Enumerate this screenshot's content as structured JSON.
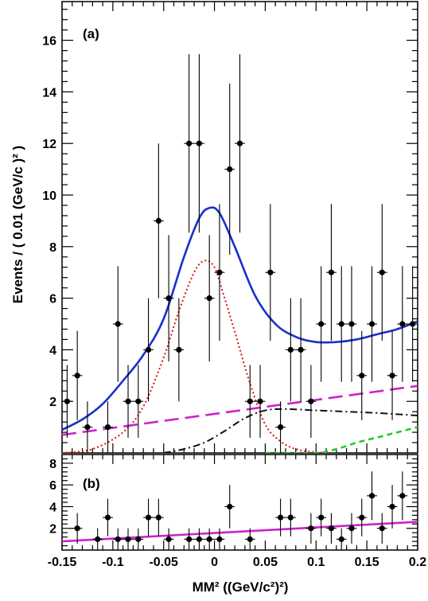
{
  "chart_data": [
    {
      "type": "scatter",
      "panel_label": "(a)",
      "xlabel": "MM² ((GeV/c²)²)",
      "ylabel": "Events / ( 0.01 (GeV/c )² )",
      "xlim": [
        -0.15,
        0.2
      ],
      "ylim": [
        0,
        17.5
      ],
      "yticks": [
        2,
        4,
        6,
        8,
        10,
        12,
        14,
        16
      ],
      "points": {
        "x": [
          -0.145,
          -0.135,
          -0.125,
          -0.105,
          -0.095,
          -0.085,
          -0.075,
          -0.065,
          -0.055,
          -0.045,
          -0.035,
          -0.025,
          -0.015,
          -0.005,
          0.005,
          0.015,
          0.025,
          0.035,
          0.045,
          0.055,
          0.065,
          0.075,
          0.085,
          0.095,
          0.105,
          0.115,
          0.125,
          0.135,
          0.145,
          0.155,
          0.165,
          0.175,
          0.185,
          0.195
        ],
        "y": [
          2,
          3,
          1,
          1,
          5,
          2,
          2,
          4,
          9,
          6,
          4,
          12,
          12,
          6,
          7,
          11,
          12,
          2,
          2,
          7,
          1,
          4,
          4,
          2,
          5,
          7,
          5,
          5,
          3,
          5,
          7,
          3,
          5,
          5
        ],
        "err": [
          1.41,
          1.73,
          1.0,
          1.0,
          2.24,
          1.41,
          1.41,
          2.0,
          3.0,
          2.45,
          2.0,
          3.46,
          3.46,
          2.45,
          2.65,
          3.32,
          3.46,
          1.41,
          1.41,
          2.65,
          1.0,
          2.0,
          2.0,
          1.41,
          2.24,
          2.65,
          2.24,
          2.24,
          1.73,
          2.24,
          2.65,
          1.73,
          2.24,
          2.24
        ]
      },
      "curves": {
        "total": {
          "color": "#1a2fcc",
          "x": [
            -0.15,
            -0.13,
            -0.11,
            -0.09,
            -0.07,
            -0.05,
            -0.03,
            -0.015,
            -0.005,
            0.005,
            0.02,
            0.04,
            0.06,
            0.08,
            0.1,
            0.12,
            0.14,
            0.16,
            0.18,
            0.2
          ],
          "y": [
            0.9,
            1.3,
            1.9,
            2.8,
            3.8,
            5.2,
            7.6,
            9.1,
            9.5,
            9.3,
            8.0,
            6.1,
            5.0,
            4.5,
            4.3,
            4.3,
            4.4,
            4.6,
            4.8,
            5.1
          ]
        },
        "signal": {
          "color": "#dd1111",
          "x": [
            -0.15,
            -0.12,
            -0.09,
            -0.07,
            -0.05,
            -0.035,
            -0.02,
            -0.01,
            0.0,
            0.01,
            0.02,
            0.035,
            0.05,
            0.065,
            0.08,
            0.1,
            0.12
          ],
          "y": [
            0.0,
            0.15,
            0.8,
            1.8,
            3.7,
            5.5,
            7.0,
            7.45,
            7.2,
            6.0,
            4.7,
            2.7,
            1.1,
            0.45,
            0.15,
            0.02,
            0.0
          ]
        },
        "background_linear": {
          "color": "#cc22cc",
          "x": [
            -0.15,
            0.2
          ],
          "y": [
            0.7,
            2.6
          ]
        },
        "background_dashdot": {
          "color": "#111111",
          "x": [
            -0.05,
            -0.03,
            -0.01,
            0.01,
            0.03,
            0.05,
            0.07,
            0.1,
            0.13,
            0.16,
            0.2
          ],
          "y": [
            0.0,
            0.15,
            0.4,
            0.85,
            1.35,
            1.65,
            1.7,
            1.65,
            1.6,
            1.55,
            1.45
          ]
        },
        "background_green": {
          "color": "#22cc22",
          "x": [
            0.05,
            0.1,
            0.12,
            0.14,
            0.16,
            0.18,
            0.2
          ],
          "y": [
            0.0,
            0.0,
            0.15,
            0.4,
            0.6,
            0.8,
            1.0
          ]
        }
      }
    },
    {
      "type": "scatter",
      "panel_label": "(b)",
      "xlim": [
        -0.15,
        0.2
      ],
      "ylim": [
        0,
        8.8
      ],
      "yticks": [
        2,
        4,
        6,
        8
      ],
      "xticks": [
        "-0.15",
        "-0.1",
        "-0.05",
        "0",
        "0.05",
        "0.1",
        "0.15",
        "0.2"
      ],
      "points": {
        "x": [
          -0.135,
          -0.115,
          -0.105,
          -0.095,
          -0.085,
          -0.075,
          -0.065,
          -0.055,
          -0.045,
          -0.025,
          -0.015,
          -0.005,
          0.005,
          0.015,
          0.035,
          0.065,
          0.075,
          0.095,
          0.105,
          0.115,
          0.125,
          0.135,
          0.145,
          0.155,
          0.165,
          0.175,
          0.185
        ],
        "y": [
          2,
          1,
          3,
          1,
          1,
          1,
          3,
          3,
          1,
          1,
          1,
          1,
          1,
          4,
          1,
          3,
          3,
          2,
          3,
          2,
          1,
          2,
          3,
          5,
          2,
          4,
          5
        ],
        "err": [
          1.41,
          1.0,
          1.73,
          1.0,
          1.0,
          1.0,
          1.73,
          1.73,
          1.0,
          1.0,
          1.0,
          1.0,
          1.0,
          2.0,
          1.0,
          1.73,
          1.73,
          1.41,
          1.73,
          1.41,
          1.0,
          1.41,
          1.73,
          2.24,
          1.41,
          2.0,
          2.24
        ]
      },
      "curves": {
        "fit": {
          "color": "#cc22cc",
          "x": [
            -0.15,
            0.2
          ],
          "y": [
            0.8,
            2.6
          ]
        }
      }
    }
  ]
}
